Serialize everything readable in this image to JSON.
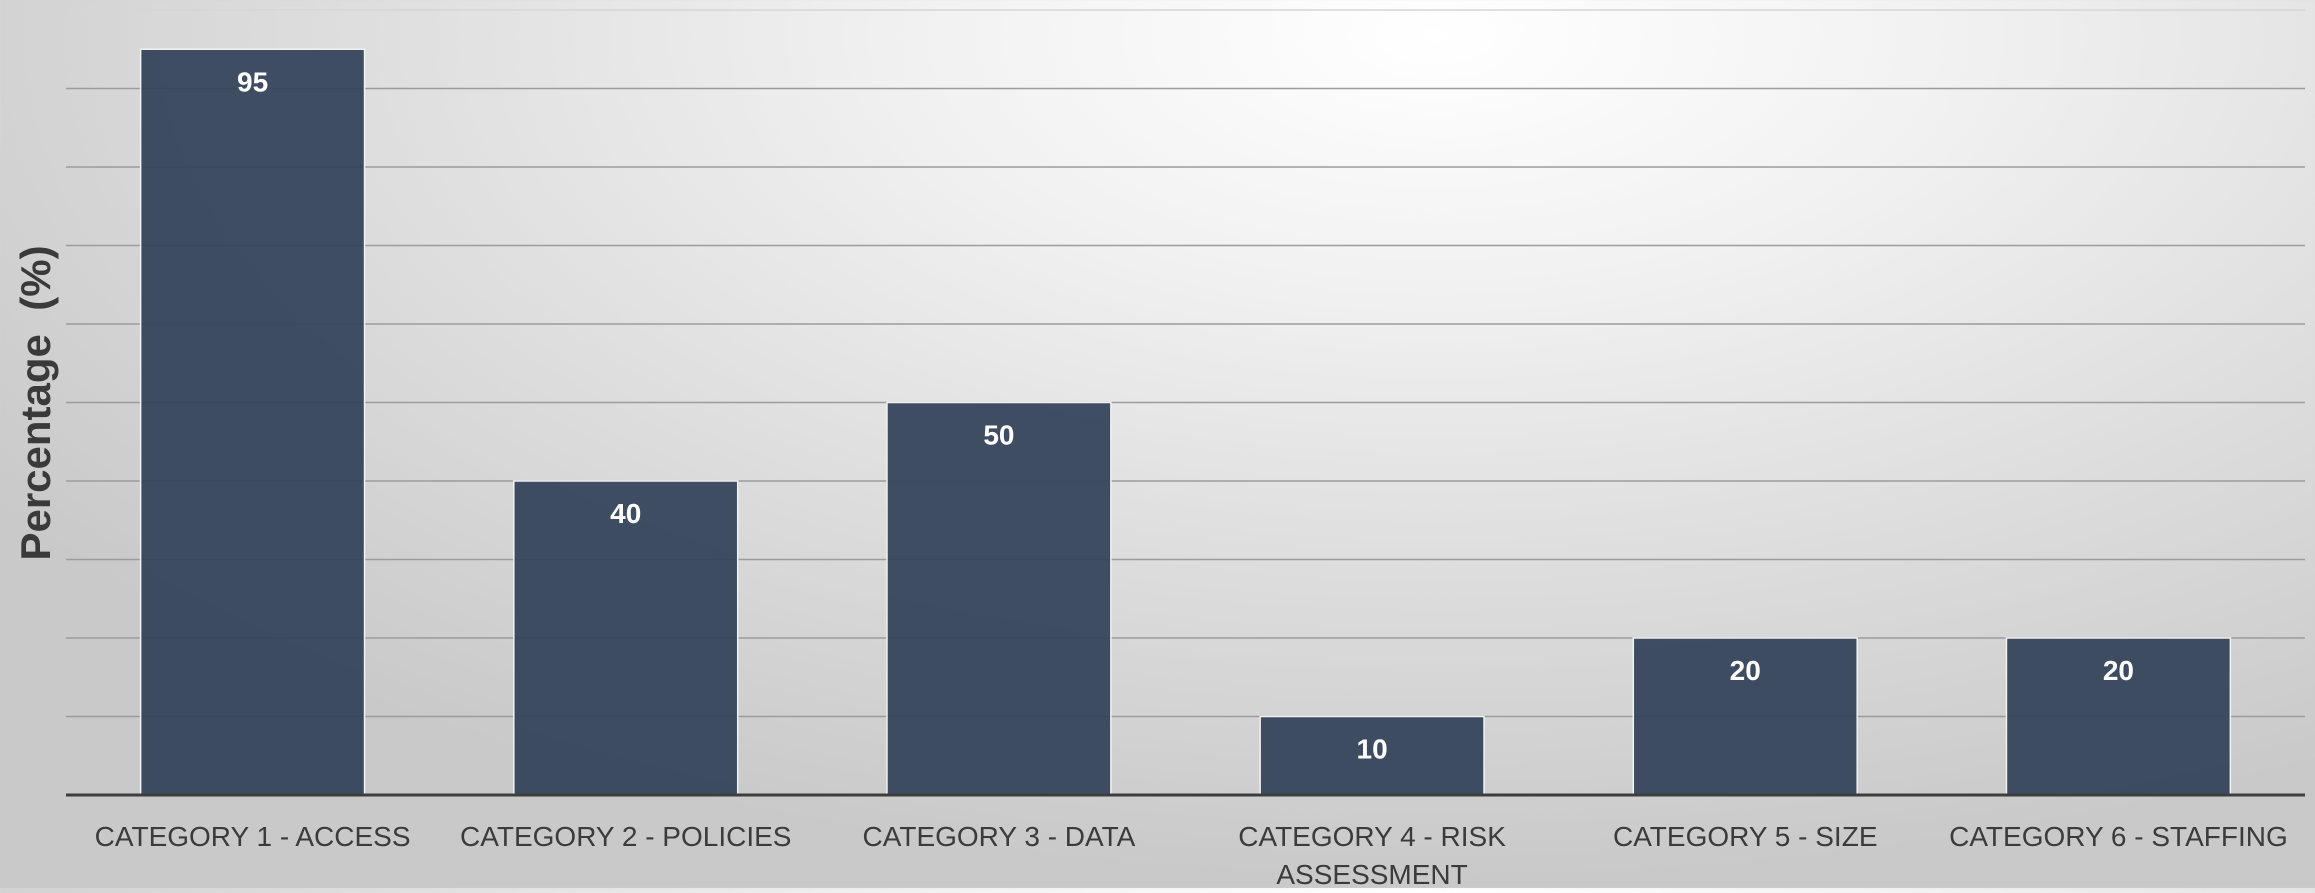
{
  "chart_data": {
    "type": "bar",
    "title": "",
    "xlabel": "",
    "ylabel": "Percentage  (%)",
    "ylim": [
      0,
      100
    ],
    "grid": true,
    "legend": "none",
    "categories": [
      "CATEGORY 1 - ACCESS",
      "CATEGORY 2 - POLICIES",
      "CATEGORY 3 - DATA",
      "CATEGORY 4 - RISK ASSESSMENT",
      "CATEGORY 5 - SIZE",
      "CATEGORY 6 - STAFFING"
    ],
    "values": [
      95,
      40,
      50,
      10,
      20,
      20
    ],
    "data_labels": [
      "95",
      "40",
      "50",
      "10",
      "20",
      "20"
    ],
    "colors": {
      "bar": "#334259",
      "bar_label": "#ffffff",
      "axis": "#3d3d3d",
      "grid": "#9c9c9c",
      "text": "#3b3b3b"
    }
  }
}
